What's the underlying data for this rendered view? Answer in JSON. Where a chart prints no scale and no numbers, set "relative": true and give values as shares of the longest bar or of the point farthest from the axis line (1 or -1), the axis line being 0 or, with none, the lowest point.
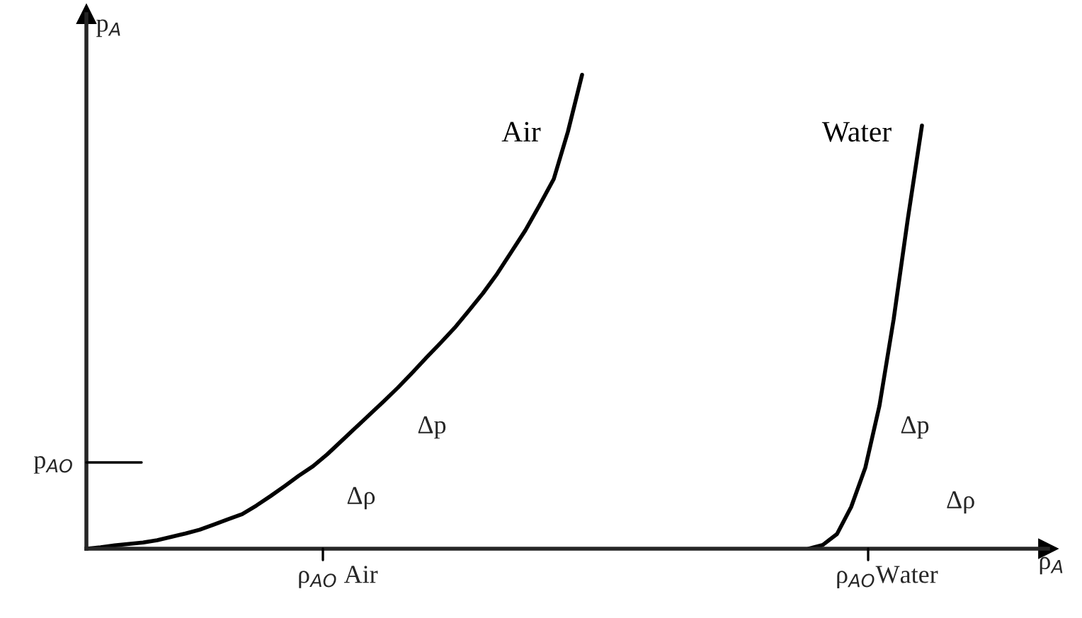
{
  "chart_data": {
    "type": "line",
    "relative": true,
    "xlabel": "ρ$_{A}$",
    "ylabel": "p$_{A}$",
    "categories": [
      null,
      null,
      null,
      null,
      null,
      null,
      null,
      null,
      null,
      null,
      null,
      null,
      null,
      null,
      null,
      null,
      null,
      null,
      null,
      null,
      null,
      null,
      null,
      null,
      null,
      null,
      null,
      null,
      null,
      null,
      null,
      null,
      null,
      null,
      null,
      null,
      null,
      null,
      null,
      null,
      null,
      null,
      null,
      null,
      null,
      null,
      null,
      null,
      null,
      null,
      null,
      null,
      null,
      null,
      null,
      null,
      null,
      null,
      null,
      null
    ],
    "series": [
      {
        "name": "Air",
        "color": "#000000",
        "values": [
          0,
          0.003,
          0.007,
          0.01,
          0.013,
          0.018,
          0.025,
          0.032,
          0.04,
          0.051,
          0.062,
          0.073,
          0.091,
          0.111,
          0.132,
          0.154,
          0.174,
          0.199,
          0.227,
          0.255,
          0.283,
          0.311,
          0.34,
          0.371,
          0.403,
          0.434,
          0.466,
          0.502,
          0.539,
          0.58,
          0.626,
          0.672,
          0.725,
          0.78,
          0.88,
          1,
          null,
          null,
          null,
          null,
          null,
          null,
          null,
          null,
          null,
          null,
          null,
          null,
          null,
          null,
          null,
          null,
          null,
          null,
          null,
          null,
          null,
          null,
          null,
          null
        ]
      },
      {
        "name": "Water",
        "color": "#000000",
        "values": [
          null,
          null,
          null,
          null,
          null,
          null,
          null,
          null,
          null,
          null,
          null,
          null,
          null,
          null,
          null,
          null,
          null,
          null,
          null,
          null,
          null,
          null,
          null,
          null,
          null,
          null,
          null,
          null,
          null,
          null,
          null,
          null,
          null,
          null,
          null,
          null,
          null,
          null,
          null,
          null,
          null,
          null,
          null,
          null,
          null,
          null,
          null,
          null,
          null,
          null,
          null,
          0,
          0.008,
          0.031,
          0.088,
          0.171,
          0.302,
          0.484,
          0.696,
          0.893
        ]
      }
    ],
    "annotations": [
      "p$_{AO}$",
      "ρ$_{AO}$ Air",
      "ρ$_{AO}$Water",
      "Δp",
      "Δρ",
      "Δp",
      "Δρ"
    ],
    "line_style": "solid",
    "marker": "none"
  }
}
